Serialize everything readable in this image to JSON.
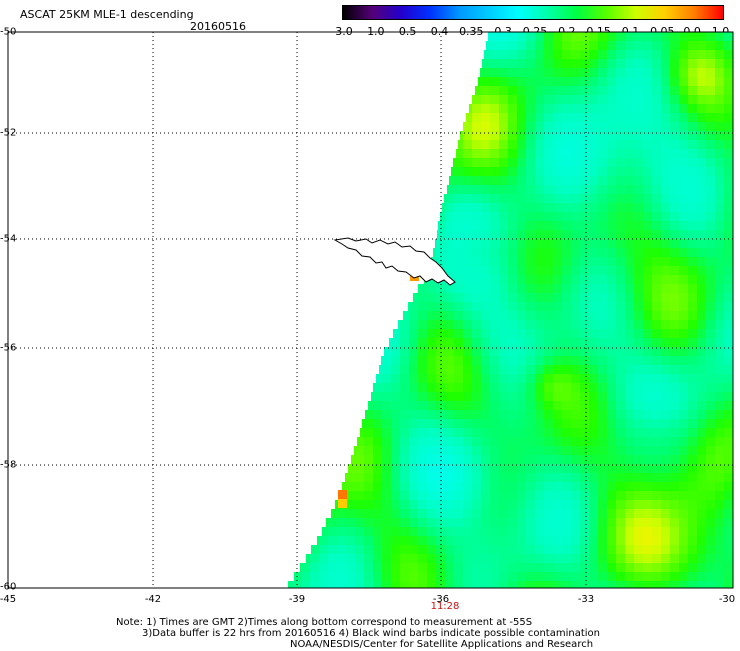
{
  "header": {
    "title": "ASCAT 25KM MLE-1 descending",
    "date": "20160516"
  },
  "colorbar": {
    "labels": [
      "-3.0",
      "-1.0",
      "-0.5",
      "-0.4",
      "-0.35",
      "-0.3",
      "-0.25",
      "-0.2",
      "-0.15",
      "-0.1",
      "-0.05",
      "0.0",
      "1.0"
    ],
    "colors": [
      "#000000",
      "#550078",
      "#2200cc",
      "#0033ff",
      "#0099ff",
      "#00ccff",
      "#00ffff",
      "#00ffaa",
      "#00ff44",
      "#55ff00",
      "#ccff00",
      "#ffd000",
      "#ff7f00",
      "#ff0000"
    ]
  },
  "map": {
    "lat_labels": [
      "-50",
      "-52",
      "-54",
      "-56",
      "-58",
      "-60"
    ],
    "lon_labels": [
      "-45",
      "-42",
      "-39",
      "-36",
      "-33",
      "-30"
    ],
    "time_label": "11:28"
  },
  "notes": {
    "line1": "Note: 1) Times are GMT 2)Times along bottom correspond to measurement at -55S",
    "line2": "3)Data buffer is 22 hrs from 20160516 4) Black wind barbs indicate possible contamination",
    "line3": "NOAA/NESDIS/Center for Satellite Applications and Research"
  }
}
